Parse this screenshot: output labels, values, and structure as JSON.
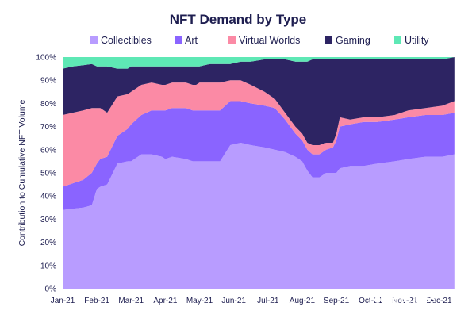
{
  "chart_data": {
    "type": "area",
    "stacked": true,
    "percent": true,
    "title": "NFT Demand by Type",
    "xlabel": "",
    "ylabel": "Contribution to Cumulative NFT Volume",
    "ylim": [
      0,
      100
    ],
    "yticks": [
      "0%",
      "10%",
      "20%",
      "30%",
      "40%",
      "50%",
      "60%",
      "70%",
      "80%",
      "90%",
      "100%"
    ],
    "xticks": [
      "Jan-21",
      "Feb-21",
      "Mar-21",
      "Apr-21",
      "May-21",
      "Jun-21",
      "Jul-21",
      "Aug-21",
      "Sep-21",
      "Oct-21",
      "Nov-21",
      "Dec-21"
    ],
    "grid": false,
    "legend": "top",
    "x": [
      0,
      0.3,
      0.6,
      0.85,
      1.0,
      1.1,
      1.3,
      1.6,
      1.9,
      2.0,
      2.3,
      2.6,
      2.9,
      3.0,
      3.2,
      3.6,
      3.8,
      3.9,
      4.0,
      4.3,
      4.5,
      4.6,
      4.9,
      5.2,
      5.5,
      5.9,
      6.2,
      6.5,
      6.8,
      7.0,
      7.15,
      7.3,
      7.5,
      7.7,
      7.9,
      8.0,
      8.1,
      8.4,
      8.8,
      9.2,
      9.7,
      10.1,
      10.6,
      11.1,
      11.45
    ],
    "series": [
      {
        "name": "Collectibles",
        "color": "#b89cff",
        "values": [
          34,
          34.5,
          35,
          36,
          43,
          44,
          45,
          54,
          55,
          55,
          58,
          58,
          57,
          56,
          57,
          56,
          55,
          55,
          55,
          55,
          55,
          55,
          62,
          63,
          62,
          61,
          60,
          59,
          57,
          55,
          51,
          48,
          48,
          50,
          50,
          50,
          52,
          53,
          53,
          54,
          55,
          56,
          57,
          57,
          58
        ]
      },
      {
        "name": "Art",
        "color": "#8a64ff",
        "values": [
          10,
          11,
          12,
          14,
          11,
          12,
          12,
          12,
          14,
          16,
          17,
          19,
          20,
          21,
          21,
          22,
          22,
          22,
          22,
          22,
          22,
          22,
          19,
          18,
          18,
          18,
          18,
          14,
          10,
          9,
          9,
          10,
          10,
          10,
          11,
          14,
          18,
          18,
          19,
          18,
          18,
          18,
          18,
          18,
          18
        ]
      },
      {
        "name": "Virtual Worlds",
        "color": "#fb8aa5",
        "values": [
          31,
          30.5,
          30,
          28,
          24,
          22,
          19,
          17,
          15,
          14,
          13,
          12,
          11,
          11,
          11,
          11,
          11,
          11,
          12,
          12,
          12,
          12,
          9,
          9,
          8,
          6,
          4,
          3,
          3,
          3,
          3,
          4,
          4,
          3,
          2,
          3,
          4,
          2,
          2,
          2,
          2,
          3,
          3,
          4,
          5
        ]
      },
      {
        "name": "Gaming",
        "color": "#2d2463",
        "values": [
          20,
          20,
          19.5,
          19,
          18,
          18,
          20,
          12,
          11,
          11,
          8,
          7,
          8,
          8,
          7,
          7,
          8,
          8,
          7,
          8,
          8,
          8,
          7,
          8,
          10,
          14,
          17,
          23,
          28,
          31,
          35,
          37,
          37,
          36,
          36,
          32,
          25,
          26,
          25,
          25,
          24,
          22,
          21,
          20,
          19
        ]
      },
      {
        "name": "Utility",
        "color": "#5ee8b5",
        "values": [
          5,
          4,
          3.5,
          3,
          4,
          4,
          4,
          5,
          5,
          4,
          4,
          4,
          4,
          4,
          4,
          4,
          4,
          4,
          4,
          3,
          3,
          3,
          3,
          2,
          2,
          1,
          1,
          1,
          2,
          2,
          2,
          1,
          1,
          1,
          1,
          1,
          1,
          1,
          1,
          1,
          1,
          1,
          1,
          1,
          0
        ]
      }
    ]
  },
  "watermark": {
    "text": "金色财经",
    "icon": "coin-logo-icon",
    "color": "#ffffff"
  }
}
